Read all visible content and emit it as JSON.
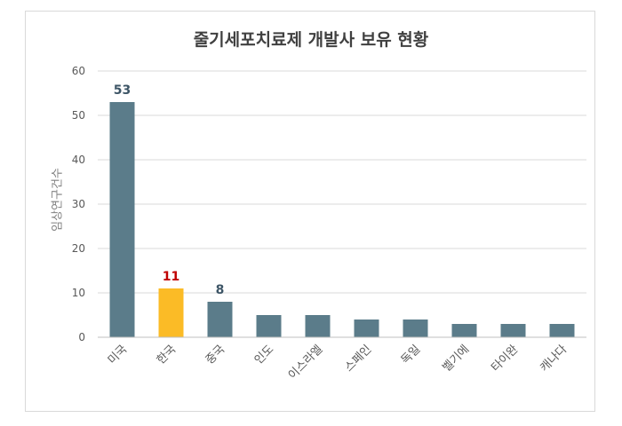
{
  "chart_data": {
    "type": "bar",
    "title": "줄기세포치료제 개발사 보유 현황",
    "xlabel": "",
    "ylabel": "임상연구건수",
    "categories": [
      "미국",
      "한국",
      "중국",
      "인도",
      "이스라엘",
      "스페인",
      "독일",
      "벨기에",
      "타이완",
      "캐나다"
    ],
    "values": [
      53,
      11,
      8,
      5,
      5,
      4,
      4,
      3,
      3,
      3
    ],
    "data_labels": [
      "53",
      "11",
      "8",
      "",
      "",
      "",
      "",
      "",
      "",
      ""
    ],
    "ylim": [
      0,
      60
    ],
    "yticks": [
      0,
      10,
      20,
      30,
      40,
      50,
      60
    ],
    "grid": true,
    "colors": {
      "default_bar": "#5b7c8a",
      "highlight_bar": "#fbbb26",
      "highlight_label": "#c00000",
      "default_label": "#3d5566",
      "grid": "#d9d9d9",
      "axis_text": "#595959"
    },
    "highlight_category": "한국"
  }
}
